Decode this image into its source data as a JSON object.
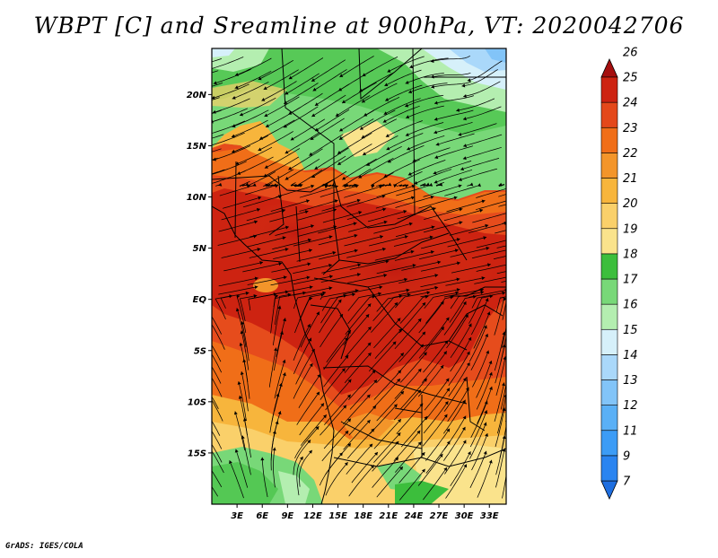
{
  "title": "WBPT [C] and Sreamline at 900hPa, VT: 2020042706",
  "credit": "GrADS: IGES/COLA",
  "map": {
    "lat_labels": [
      "20N",
      "15N",
      "10N",
      "5N",
      "EQ",
      "5S",
      "10S",
      "15S"
    ],
    "lat_values": [
      20,
      15,
      10,
      5,
      0,
      -5,
      -10,
      -15
    ],
    "lon_labels": [
      "3E",
      "6E",
      "9E",
      "12E",
      "15E",
      "18E",
      "21E",
      "24E",
      "27E",
      "30E",
      "33E"
    ],
    "lon_values": [
      3,
      6,
      9,
      12,
      15,
      18,
      21,
      24,
      27,
      30,
      33
    ],
    "lat_range": [
      -20,
      24.5
    ],
    "lon_range": [
      0,
      35
    ]
  },
  "colorbar": {
    "labels": [
      "7",
      "9",
      "11",
      "12",
      "13",
      "14",
      "15",
      "16",
      "17",
      "18",
      "19",
      "20",
      "21",
      "22",
      "23",
      "24",
      "25",
      "26"
    ],
    "colors": [
      "#1e6ee0",
      "#2a84f0",
      "#3c9cf6",
      "#5ab0f6",
      "#82c4f8",
      "#aad8fa",
      "#d6f0fa",
      "#b4eeb0",
      "#78d878",
      "#3cbe3c",
      "#fae38c",
      "#fad06a",
      "#f7b53c",
      "#f3952a",
      "#f06e18",
      "#e4481a",
      "#cd2311",
      "#a50f0f"
    ]
  },
  "colors": {
    "frame": "#000000"
  }
}
